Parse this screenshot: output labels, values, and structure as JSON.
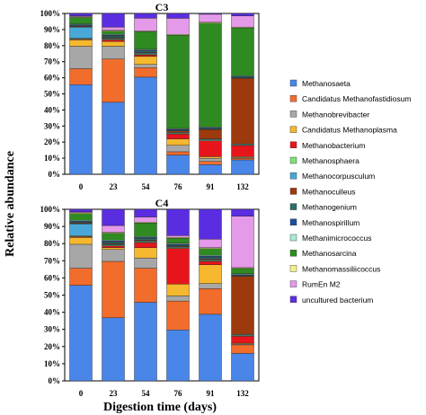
{
  "chart_data": {
    "type": "bar",
    "stacked": true,
    "xlabel": "Digestion time (days)",
    "ylabel": "Relative abundance",
    "y_ticks": [
      "0%",
      "10%",
      "20%",
      "30%",
      "40%",
      "50%",
      "60%",
      "70%",
      "80%",
      "90%",
      "100%"
    ],
    "ylim": [
      0,
      100
    ],
    "legend_position": "right",
    "series": [
      {
        "name": "Methanosaeta",
        "color": "#4a86e8"
      },
      {
        "name": "Candidatus Methanofastidiosum",
        "color": "#f26c2c"
      },
      {
        "name": "Methanobrevibacter",
        "color": "#a7a7a7"
      },
      {
        "name": "Candidatus Methanoplasma",
        "color": "#f5b82e"
      },
      {
        "name": "Methanobacterium",
        "color": "#e8141c"
      },
      {
        "name": "Methanosphaera",
        "color": "#7fe07b"
      },
      {
        "name": "Methanocorpusculum",
        "color": "#4aa8d8"
      },
      {
        "name": "Methanoculleus",
        "color": "#9c3a0e"
      },
      {
        "name": "Methanogenium",
        "color": "#2e6e6a"
      },
      {
        "name": "Methanospirillum",
        "color": "#1e4e9e"
      },
      {
        "name": "Methanimicrococcus",
        "color": "#a8e8d8"
      },
      {
        "name": "Methanosarcina",
        "color": "#2f8a22"
      },
      {
        "name": "Methanomassiliicoccus",
        "color": "#f2f08a"
      },
      {
        "name": "RumEn M2",
        "color": "#e49ae8"
      },
      {
        "name": "uncultured bacterium",
        "color": "#5a2ee0"
      }
    ],
    "panels": [
      {
        "title": "C3",
        "categories": [
          "0",
          "23",
          "54",
          "76",
          "91",
          "132"
        ],
        "values": [
          [
            56,
            10,
            14,
            4,
            0.5,
            0.5,
            7,
            0.5,
            0.5,
            0.5,
            0.5,
            4,
            0.5,
            0.5,
            1.5
          ],
          [
            45,
            27,
            8,
            3,
            1,
            0.5,
            0.5,
            0.5,
            1,
            0.5,
            0.5,
            2,
            0.5,
            2,
            8.5
          ],
          [
            61,
            6,
            2,
            5,
            1,
            0.5,
            0.5,
            0.5,
            1,
            0.5,
            0.5,
            11,
            0.5,
            8,
            3
          ],
          [
            12,
            2,
            4,
            4,
            3,
            0.5,
            0.5,
            1,
            0.5,
            0.5,
            0.5,
            58,
            0.5,
            10,
            3
          ],
          [
            6,
            2,
            2,
            1,
            10,
            0.5,
            0.5,
            6,
            0.5,
            0.5,
            0.5,
            65,
            0.5,
            5,
            0.5
          ],
          [
            9,
            1,
            0.5,
            0.5,
            7,
            0.5,
            0.5,
            41,
            0.5,
            0.5,
            0.5,
            30,
            0.5,
            7,
            1.5
          ]
        ]
      },
      {
        "title": "C4",
        "categories": [
          "0",
          "23",
          "54",
          "76",
          "91",
          "132"
        ],
        "values": [
          [
            56,
            10,
            14,
            4,
            0.5,
            0.5,
            7,
            0.5,
            0.5,
            0.5,
            0.5,
            4,
            0.5,
            0.5,
            1.5
          ],
          [
            37,
            33,
            7,
            1,
            1,
            0.5,
            0.5,
            0.5,
            1,
            0.5,
            0.5,
            4,
            0.5,
            4,
            9.5
          ],
          [
            46,
            20,
            6,
            6,
            3,
            0.5,
            0.5,
            0.5,
            1,
            0.5,
            0.5,
            8,
            0.5,
            3,
            4.5
          ],
          [
            30,
            17,
            3,
            7,
            21,
            0.5,
            0.5,
            0.5,
            0.5,
            0.5,
            0.5,
            3,
            0.5,
            1,
            15.5
          ],
          [
            39,
            15,
            3,
            11,
            2,
            0.5,
            0.5,
            0.5,
            1,
            0.5,
            0.5,
            4,
            0.5,
            5,
            17.5
          ],
          [
            16,
            5,
            0.5,
            0.5,
            4,
            0.5,
            0.5,
            34,
            0.5,
            0.5,
            0.5,
            3,
            0.5,
            30,
            4
          ]
        ]
      }
    ]
  }
}
